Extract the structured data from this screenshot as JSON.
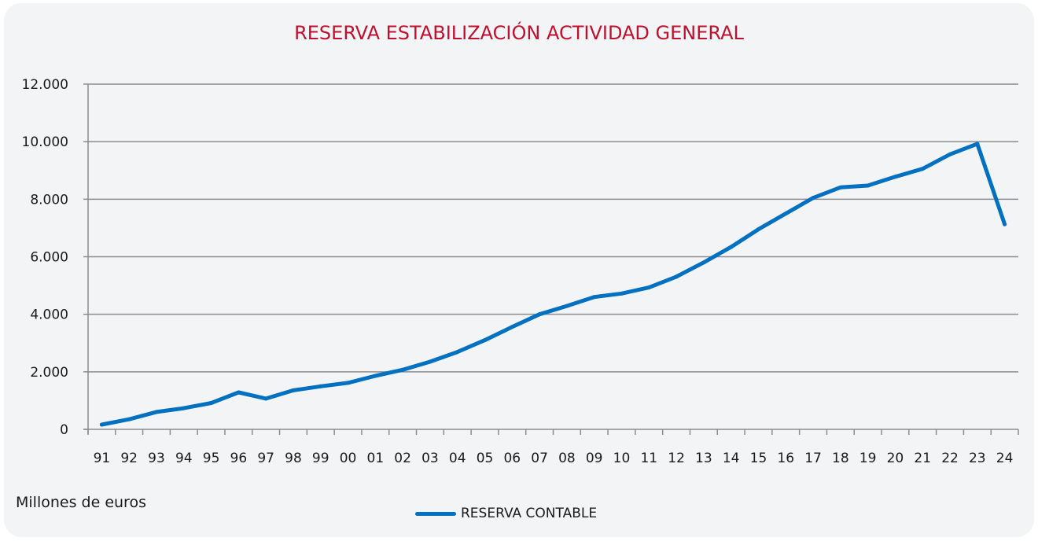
{
  "chart_data": {
    "type": "line",
    "title": "RESERVA ESTABILIZACIÓN ACTIVIDAD GENERAL",
    "xlabel": "",
    "ylabel": "",
    "units_note": "Millones de euros",
    "categories": [
      "91",
      "92",
      "93",
      "94",
      "95",
      "96",
      "97",
      "98",
      "99",
      "00",
      "01",
      "02",
      "03",
      "04",
      "05",
      "06",
      "07",
      "08",
      "09",
      "10",
      "11",
      "12",
      "13",
      "14",
      "15",
      "16",
      "17",
      "18",
      "19",
      "20",
      "21",
      "22",
      "23",
      "24"
    ],
    "series": [
      {
        "name": "RESERVA CONTABLE",
        "color": "#0070c0",
        "values": [
          165,
          350,
          605,
          735,
          915,
          1285,
          1070,
          1355,
          1495,
          1615,
          1860,
          2070,
          2350,
          2690,
          3100,
          3560,
          4000,
          4290,
          4600,
          4720,
          4930,
          5305,
          5800,
          6340,
          6955,
          7500,
          8045,
          8410,
          8475,
          8780,
          9055,
          9560,
          9925,
          7130
        ]
      }
    ],
    "ylim": [
      0,
      12000
    ],
    "yticks": [
      0,
      2000,
      4000,
      6000,
      8000,
      10000,
      12000
    ],
    "ytick_labels": [
      "0",
      "2.000",
      "4.000",
      "6.000",
      "8.000",
      "10.000",
      "12.000"
    ],
    "grid": true,
    "legend_position": "bottom-center"
  },
  "colors": {
    "title": "#c0102f",
    "line": "#0070c0",
    "background": "#f3f4f6",
    "grid": "#8c8c8c"
  }
}
